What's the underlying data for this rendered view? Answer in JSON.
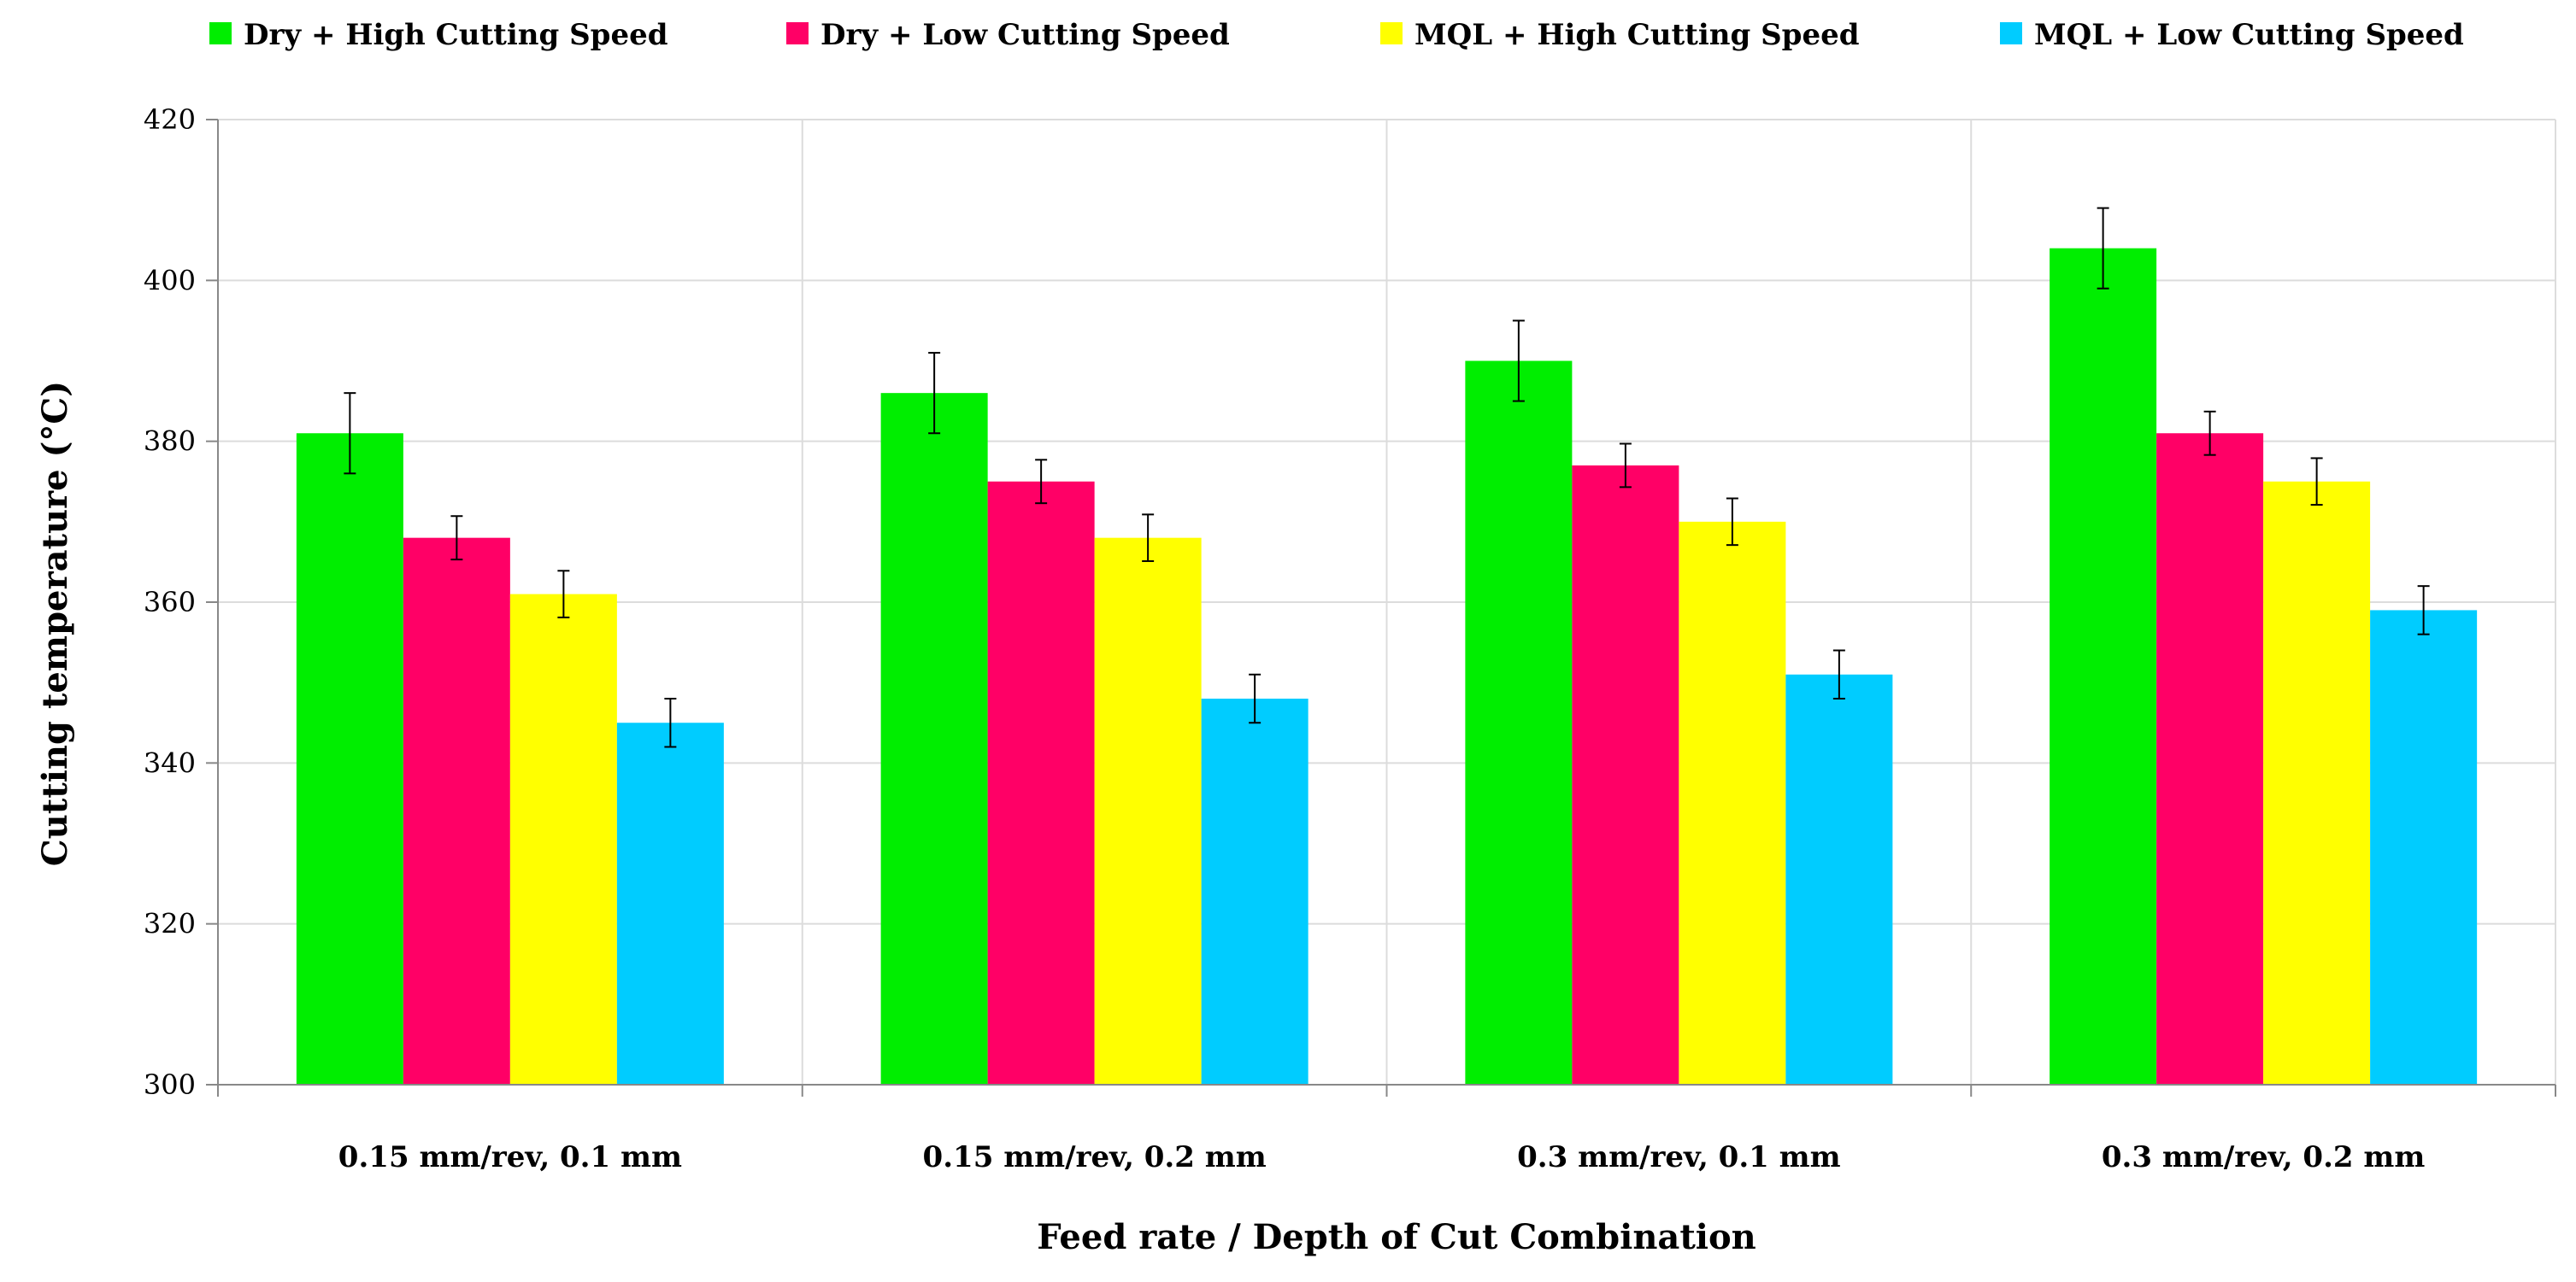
{
  "chart_data": {
    "type": "bar",
    "title": "",
    "xlabel": "Feed rate / Depth of Cut Combination",
    "ylabel": "Cutting temperature (°C)",
    "ylim": [
      300,
      420
    ],
    "yticks": [
      300,
      320,
      340,
      360,
      380,
      400,
      420
    ],
    "grid": true,
    "legend_position": "top",
    "categories": [
      "0.15 mm/rev, 0.1 mm",
      "0.15 mm/rev, 0.2 mm",
      "0.3 mm/rev, 0.1 mm",
      "0.3 mm/rev, 0.2 mm"
    ],
    "series": [
      {
        "name": "Dry + High Cutting Speed",
        "color": "#00EE00",
        "values": [
          381,
          386,
          390,
          404
        ],
        "errors": [
          5,
          5,
          5,
          5
        ]
      },
      {
        "name": "Dry + Low Cutting Speed",
        "color": "#FF0066",
        "values": [
          368,
          375,
          377,
          381
        ],
        "errors": [
          2.7,
          2.7,
          2.7,
          2.7
        ]
      },
      {
        "name": "MQL + High Cutting Speed",
        "color": "#FFFF00",
        "values": [
          361,
          368,
          370,
          375
        ],
        "errors": [
          2.9,
          2.9,
          2.9,
          2.9
        ]
      },
      {
        "name": "MQL + Low Cutting Speed",
        "color": "#00CCFF",
        "values": [
          345,
          348,
          351,
          359
        ],
        "errors": [
          3,
          3,
          3,
          3
        ]
      }
    ]
  }
}
